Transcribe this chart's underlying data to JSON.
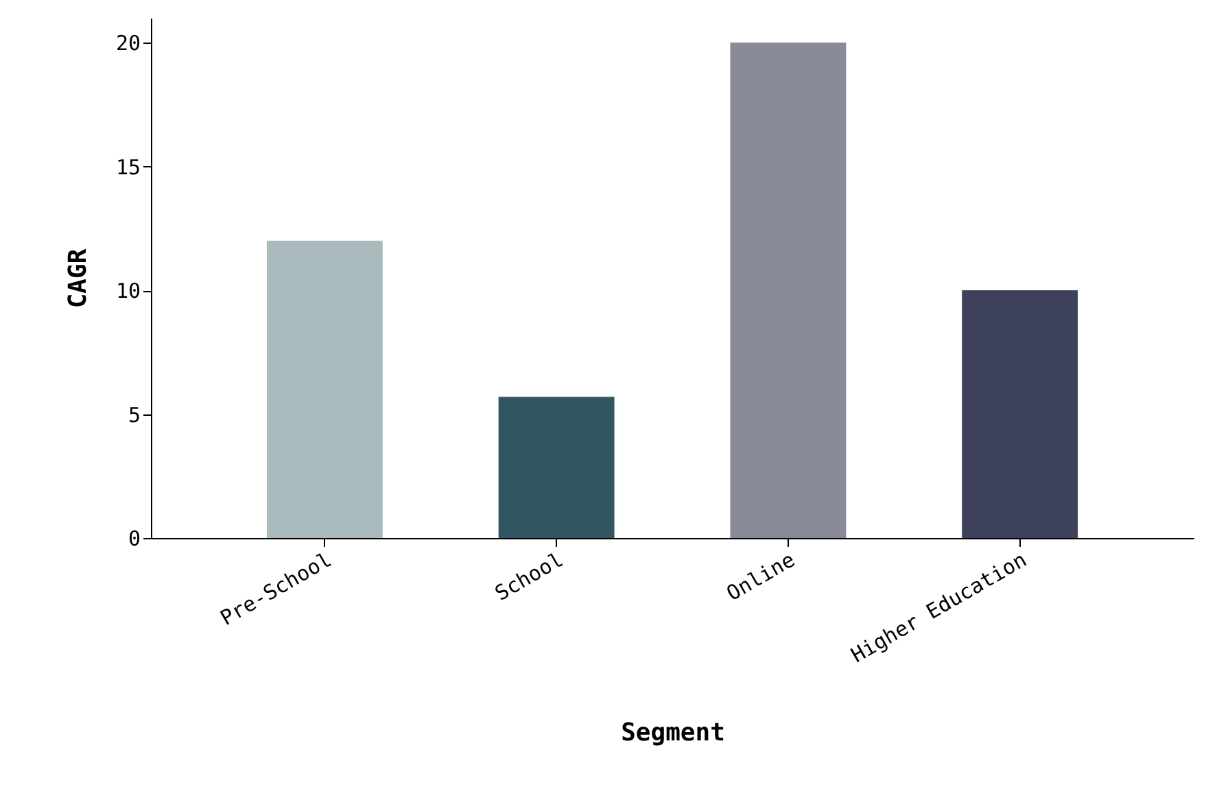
{
  "chart_data": {
    "type": "bar",
    "xlabel": "Segment",
    "ylabel": "CAGR",
    "categories": [
      "Pre-School",
      "School",
      "Online",
      "Higher Education"
    ],
    "values": [
      12,
      5.7,
      20,
      10
    ],
    "colors": [
      "#a9babd",
      "#305663",
      "#898b9a",
      "#3d415b"
    ],
    "ylim": [
      0,
      21
    ],
    "yticks": [
      0,
      5,
      10,
      15,
      20
    ],
    "grid": false
  }
}
